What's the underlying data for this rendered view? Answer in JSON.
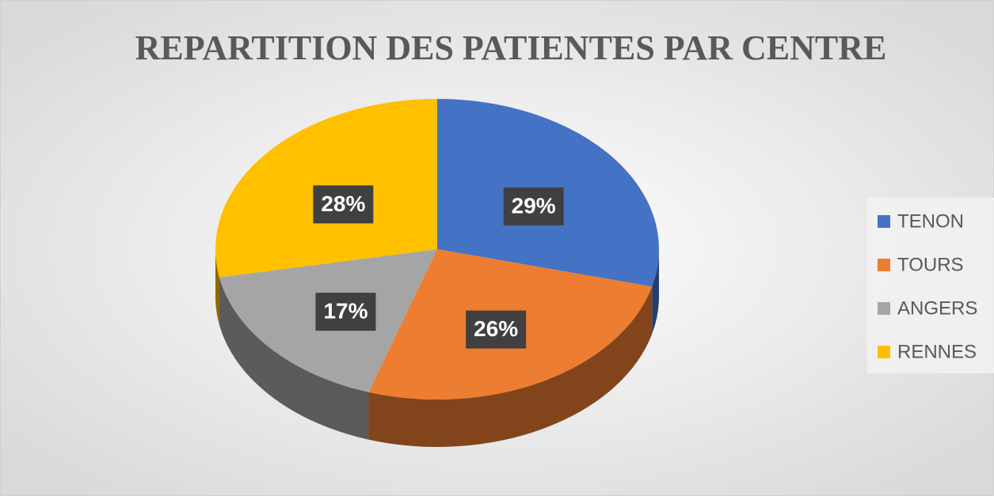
{
  "chart_data": {
    "type": "pie3d",
    "title": "REPARTITION DES PATIENTES PAR CENTRE",
    "categories": [
      "TENON",
      "TOURS",
      "ANGERS",
      "RENNES"
    ],
    "values": [
      29,
      26,
      17,
      28
    ],
    "value_labels": [
      "29%",
      "26%",
      "17%",
      "28%"
    ],
    "colors": [
      "#4472c4",
      "#ed7d31",
      "#a5a5a5",
      "#ffc000"
    ],
    "legend": "right"
  }
}
